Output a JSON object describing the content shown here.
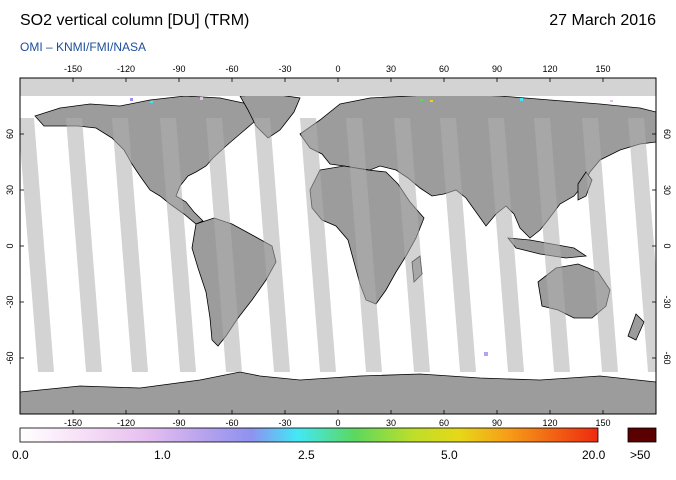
{
  "header": {
    "title": "SO2 vertical column [DU] (TRM)",
    "date": "27 March 2016",
    "credit": "OMI  –  KNMI/FMI/NASA"
  },
  "map": {
    "lon_ticks": [
      "-150",
      "-120",
      "-90",
      "-60",
      "-30",
      "0",
      "30",
      "60",
      "90",
      "120",
      "150"
    ],
    "lat_ticks": [
      "60",
      "30",
      "0",
      "-30",
      "-60"
    ],
    "colors": {
      "land": "#9c9c9c",
      "ocean": "#ffffff",
      "swath_gap": "#d3d3d3",
      "no_data": "#d3d3d3",
      "coastline": "#000000"
    }
  },
  "colorbar": {
    "labels": [
      "0.0",
      "1.0",
      "2.5",
      "5.0",
      "20.0"
    ],
    "overflow_label": ">50",
    "overflow_color": "#5a0000",
    "stops": [
      "#ffffff",
      "#f4d8f4",
      "#d8a8ee",
      "#9a8ef0",
      "#42e8f6",
      "#5cd85e",
      "#e6e018",
      "#f6a018",
      "#ee2a10"
    ]
  }
}
